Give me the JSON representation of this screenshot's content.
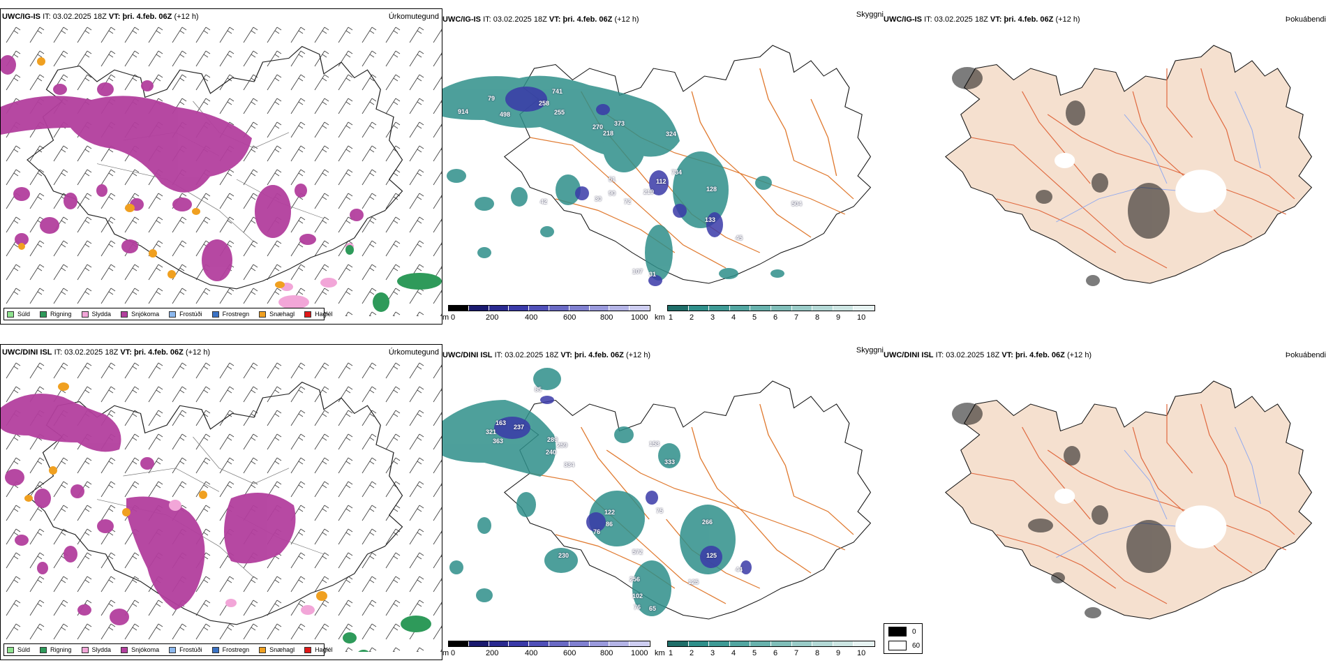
{
  "colors": {
    "suld": "#8fe28f",
    "rigning": "#2e9a5a",
    "slydda": "#f2a6d8",
    "snjokoma": "#b33f9e",
    "frostudi": "#8cb8ee",
    "frostregn": "#3a72c4",
    "snaehagl": "#f0a020",
    "hagel": "#e01818",
    "cloud": "#2f8f8a",
    "vis": "#3a3aa8",
    "road": "#e07a30",
    "land": "#f5e0cf",
    "river": "#8ea8f0"
  },
  "header": {
    "it_label": "IT:",
    "it_value": "03.02.2025 18Z",
    "vt_label": "VT:",
    "vt_value": "þri. 4.feb. 06Z",
    "lead": "(+12 h)"
  },
  "rows": [
    {
      "model": "UWC/IG-IS"
    },
    {
      "model": "UWC/DINI ISL"
    }
  ],
  "titles": {
    "precip": "Úrkomutegund",
    "visibility": "Skyggni",
    "fog": "Þokuábendi"
  },
  "precip_legend": [
    "Súld",
    "Rigning",
    "Slydda",
    "Snjókoma",
    "Frostúði",
    "Frostregn",
    "Snæhagl",
    "Haglél"
  ],
  "vis_bar": {
    "unit": "m",
    "ticks": [
      "0",
      "200",
      "400",
      "600",
      "800",
      "1000"
    ]
  },
  "cloud_bar": {
    "unit": "km",
    "ticks": [
      "1",
      "2",
      "3",
      "4",
      "5",
      "6",
      "7",
      "8",
      "9",
      "10"
    ]
  },
  "fog_legend": {
    "black": "0",
    "white": "60"
  },
  "vis_labels_top": [
    "79",
    "914",
    "498",
    "741",
    "258",
    "255",
    "270",
    "218",
    "373",
    "324",
    "734",
    "112",
    "51",
    "128",
    "90",
    "30",
    "72",
    "219",
    "133",
    "45",
    "42",
    "31",
    "107",
    "504"
  ],
  "vis_labels_bottom": [
    "85",
    "163",
    "321",
    "363",
    "237",
    "289",
    "259",
    "240",
    "334",
    "153",
    "333",
    "75",
    "122",
    "86",
    "76",
    "266",
    "572",
    "125",
    "256",
    "230",
    "125",
    "102",
    "76",
    "65",
    "44"
  ]
}
